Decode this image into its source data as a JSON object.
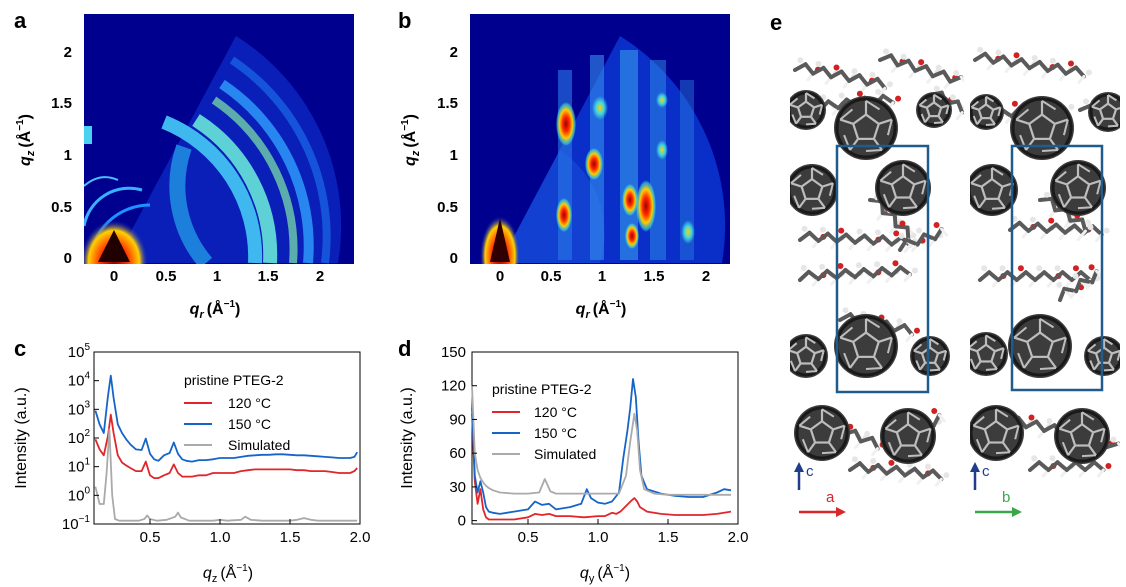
{
  "panels": {
    "a": {
      "letter": "a"
    },
    "b": {
      "letter": "b"
    },
    "c": {
      "letter": "c"
    },
    "d": {
      "letter": "d"
    },
    "e": {
      "letter": "e"
    }
  },
  "map_a": {
    "xticks": [
      "0",
      "0.5",
      "1",
      "1.5",
      "2"
    ],
    "yticks": [
      "0",
      "0.5",
      "1",
      "1.5",
      "2"
    ],
    "xlabel_sym": "q",
    "xlabel_sub": "r",
    "xlabel_unit": "(Å",
    "ylabel_sym": "q",
    "ylabel_sub": "z",
    "ylabel_unit": "(Å"
  },
  "map_b": {
    "xticks": [
      "0",
      "0.5",
      "1",
      "1.5",
      "2"
    ],
    "yticks": [
      "0",
      "0.5",
      "1",
      "1.5",
      "2"
    ],
    "xlabel_sym": "q",
    "xlabel_sub": "r",
    "xlabel_unit": "(Å",
    "ylabel_sym": "q",
    "ylabel_sub": "z",
    "ylabel_unit": "(Å"
  },
  "axis_common": {
    "exp": "−1",
    "close": ")"
  },
  "chart_data": [
    {
      "panel": "c",
      "type": "line",
      "xlabel_sym": "q",
      "xlabel_sub": "z",
      "xlabel_unit": "(Å",
      "ylabel": "Intensity (a.u.)",
      "yscale": "log",
      "xlim": [
        0.1,
        2.0
      ],
      "ylim": [
        0.1,
        100000
      ],
      "xticks": [
        "0.5",
        "1.0",
        "1.5",
        "2.0"
      ],
      "ytick_base": "10",
      "ytick_exps": [
        "−1",
        "0",
        "1",
        "2",
        "3",
        "4",
        "5"
      ],
      "legend_title": "pristine PTEG-2",
      "legend_position": "top-right",
      "series": [
        {
          "name": "120 °C",
          "color": "#e0262a",
          "x": [
            0.11,
            0.14,
            0.17,
            0.2,
            0.22,
            0.24,
            0.27,
            0.3,
            0.33,
            0.36,
            0.4,
            0.44,
            0.47,
            0.5,
            0.53,
            0.56,
            0.6,
            0.64,
            0.67,
            0.7,
            0.73,
            0.76,
            0.8,
            0.85,
            0.9,
            0.95,
            1.0,
            1.05,
            1.1,
            1.15,
            1.2,
            1.25,
            1.3,
            1.35,
            1.4,
            1.45,
            1.5,
            1.55,
            1.6,
            1.65,
            1.7,
            1.75,
            1.8,
            1.85,
            1.9,
            1.93,
            1.96,
            1.98
          ],
          "y": [
            90,
            40,
            25,
            120,
            650,
            150,
            25,
            14,
            11,
            9,
            7,
            7,
            15,
            5,
            4,
            4,
            5,
            6,
            12,
            6,
            4.5,
            4.5,
            4.5,
            5,
            5,
            6,
            6,
            6,
            6,
            7,
            7.5,
            8,
            8,
            8,
            8,
            8,
            8,
            7.5,
            7.5,
            7,
            7,
            7,
            6.5,
            6,
            6,
            6,
            7,
            9
          ]
        },
        {
          "name": "150 °C",
          "color": "#1565c8",
          "x": [
            0.11,
            0.14,
            0.17,
            0.2,
            0.22,
            0.24,
            0.27,
            0.3,
            0.33,
            0.36,
            0.4,
            0.44,
            0.47,
            0.5,
            0.53,
            0.56,
            0.6,
            0.64,
            0.67,
            0.7,
            0.73,
            0.76,
            0.8,
            0.85,
            0.9,
            0.95,
            1.0,
            1.05,
            1.1,
            1.15,
            1.2,
            1.25,
            1.3,
            1.35,
            1.4,
            1.45,
            1.5,
            1.55,
            1.6,
            1.65,
            1.7,
            1.75,
            1.8,
            1.85,
            1.9,
            1.93,
            1.96,
            1.98
          ],
          "y": [
            900,
            300,
            150,
            3000,
            15000,
            2500,
            300,
            150,
            90,
            60,
            40,
            38,
            95,
            28,
            18,
            16,
            25,
            30,
            70,
            28,
            18,
            16,
            15,
            17,
            17,
            18,
            20,
            20,
            20,
            22,
            24,
            25,
            26,
            26,
            27,
            27,
            26,
            25,
            25,
            24,
            23,
            22,
            21,
            20,
            20,
            20,
            22,
            32
          ]
        },
        {
          "name": "Simulated",
          "color": "#aaaaaa",
          "x": [
            0.11,
            0.14,
            0.17,
            0.19,
            0.21,
            0.23,
            0.25,
            0.28,
            0.32,
            0.36,
            0.42,
            0.46,
            0.48,
            0.5,
            0.55,
            0.62,
            0.68,
            0.7,
            0.72,
            0.78,
            0.85,
            0.95,
            1.0,
            1.05,
            1.15,
            1.18,
            1.22,
            1.3,
            1.4,
            1.5,
            1.55,
            1.6,
            1.65,
            1.7,
            1.8,
            1.9,
            1.98
          ],
          "y": [
            2,
            0.5,
            0.5,
            6,
            200,
            1.0,
            0.15,
            0.13,
            0.13,
            0.13,
            0.13,
            0.15,
            0.2,
            0.15,
            0.13,
            0.14,
            0.18,
            0.25,
            0.17,
            0.13,
            0.13,
            0.13,
            0.14,
            0.13,
            0.14,
            0.18,
            0.14,
            0.13,
            0.13,
            0.13,
            0.14,
            0.16,
            0.14,
            0.13,
            0.13,
            0.13,
            0.13
          ]
        }
      ]
    },
    {
      "panel": "d",
      "type": "line",
      "xlabel_sym": "q",
      "xlabel_sub": "y",
      "xlabel_unit": "(Å",
      "ylabel": "Intensity (a.u.)",
      "xlim": [
        0.1,
        2.0
      ],
      "ylim": [
        -3,
        150
      ],
      "xticks": [
        "0.5",
        "1.0",
        "1.5",
        "2.0"
      ],
      "yticks": [
        "0",
        "30",
        "60",
        "90",
        "120",
        "150"
      ],
      "legend_title": "pristine PTEG-2",
      "legend_position": "top-left",
      "series": [
        {
          "name": "120 °C",
          "color": "#e0262a",
          "x": [
            0.1,
            0.12,
            0.14,
            0.16,
            0.18,
            0.2,
            0.22,
            0.25,
            0.3,
            0.4,
            0.5,
            0.55,
            0.6,
            0.65,
            0.7,
            0.8,
            0.9,
            1.0,
            1.05,
            1.1,
            1.13,
            1.16,
            1.2,
            1.24,
            1.26,
            1.28,
            1.3,
            1.35,
            1.45,
            1.55,
            1.65,
            1.75,
            1.85,
            1.95
          ],
          "y": [
            95,
            35,
            15,
            28,
            10,
            3,
            1,
            1,
            1,
            1,
            3,
            6,
            5,
            6,
            4,
            4,
            3,
            4,
            4,
            7,
            6,
            8,
            13,
            18,
            20,
            17,
            12,
            8,
            6,
            5,
            5,
            5,
            6,
            8
          ]
        },
        {
          "name": "150 °C",
          "color": "#1565c8",
          "x": [
            0.1,
            0.12,
            0.14,
            0.16,
            0.18,
            0.2,
            0.22,
            0.25,
            0.3,
            0.4,
            0.5,
            0.55,
            0.6,
            0.65,
            0.7,
            0.8,
            0.88,
            0.92,
            0.95,
            1.0,
            1.05,
            1.1,
            1.15,
            1.18,
            1.21,
            1.23,
            1.25,
            1.27,
            1.29,
            1.31,
            1.35,
            1.45,
            1.55,
            1.65,
            1.75,
            1.85,
            1.9,
            1.95
          ],
          "y": [
            100,
            40,
            25,
            35,
            25,
            12,
            8,
            7,
            6,
            8,
            10,
            17,
            14,
            15,
            10,
            12,
            15,
            28,
            20,
            16,
            15,
            17,
            25,
            55,
            80,
            100,
            126,
            110,
            70,
            40,
            28,
            24,
            22,
            21,
            21,
            25,
            28,
            27
          ]
        },
        {
          "name": "Simulated",
          "color": "#aaaaaa",
          "x": [
            0.1,
            0.12,
            0.14,
            0.16,
            0.18,
            0.2,
            0.22,
            0.25,
            0.3,
            0.4,
            0.5,
            0.58,
            0.62,
            0.66,
            0.7,
            0.8,
            0.9,
            1.0,
            1.1,
            1.15,
            1.2,
            1.23,
            1.26,
            1.28,
            1.3,
            1.33,
            1.4,
            1.5,
            1.6,
            1.7,
            1.8,
            1.9,
            1.95
          ],
          "y": [
            120,
            60,
            45,
            38,
            34,
            31,
            29,
            27,
            25,
            24,
            24,
            25,
            37,
            26,
            24,
            24,
            24,
            24,
            24,
            24,
            40,
            70,
            95,
            80,
            45,
            28,
            24,
            23,
            23,
            23,
            23,
            23,
            23
          ]
        }
      ]
    }
  ],
  "crystal": {
    "left_axes": {
      "vertical": "c",
      "horizontal": "a",
      "vertical_color": "#1f3d8a",
      "horizontal_color": "#d9262a"
    },
    "right_axes": {
      "vertical": "c",
      "horizontal": "b",
      "vertical_color": "#1f3d8a",
      "horizontal_color": "#3aa84a"
    },
    "cell_color": "#1f5c8c"
  }
}
